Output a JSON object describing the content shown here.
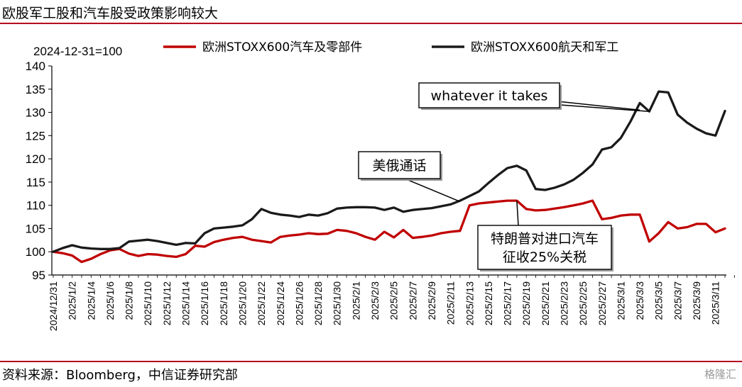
{
  "page": {
    "title": "欧股军工股和汽车股受政策影响较大",
    "source": "资料来源：Bloomberg，中信证券研究部",
    "watermark": "格隆汇"
  },
  "chart_data": {
    "type": "line",
    "ylabel": "2024-12-31=100",
    "ylim": [
      95,
      140
    ],
    "yticks": [
      95,
      100,
      105,
      110,
      115,
      120,
      125,
      130,
      135,
      140
    ],
    "x_range": [
      "2024-12-31",
      "2025-03-12"
    ],
    "xticks": [
      "2024/12/31",
      "2025/1/2",
      "2025/1/4",
      "2025/1/6",
      "2025/1/8",
      "2025/1/10",
      "2025/1/12",
      "2025/1/14",
      "2025/1/16",
      "2025/1/18",
      "2025/1/20",
      "2025/1/22",
      "2025/1/24",
      "2025/1/26",
      "2025/1/28",
      "2025/1/30",
      "2025/2/1",
      "2025/2/3",
      "2025/2/5",
      "2025/2/7",
      "2025/2/9",
      "2025/2/11",
      "2025/2/13",
      "2025/2/15",
      "2025/2/17",
      "2025/2/19",
      "2025/2/21",
      "2025/2/23",
      "2025/2/25",
      "2025/2/27",
      "2025/3/1",
      "2025/3/3",
      "2025/3/5",
      "2025/3/7",
      "2025/3/9",
      "2025/3/11"
    ],
    "grid": false,
    "legend_position": "top",
    "series": [
      {
        "name": "欧洲STOXX600汽车及零部件",
        "color": "#c00000",
        "points": [
          [
            "2024-12-31",
            100.0
          ],
          [
            "2025-01-01",
            99.7
          ],
          [
            "2025-01-02",
            99.2
          ],
          [
            "2025-01-03",
            97.8
          ],
          [
            "2025-01-04",
            98.5
          ],
          [
            "2025-01-05",
            99.5
          ],
          [
            "2025-01-06",
            100.3
          ],
          [
            "2025-01-07",
            100.6
          ],
          [
            "2025-01-08",
            99.6
          ],
          [
            "2025-01-09",
            99.1
          ],
          [
            "2025-01-10",
            99.5
          ],
          [
            "2025-01-11",
            99.4
          ],
          [
            "2025-01-12",
            99.1
          ],
          [
            "2025-01-13",
            98.9
          ],
          [
            "2025-01-14",
            99.5
          ],
          [
            "2025-01-15",
            101.3
          ],
          [
            "2025-01-16",
            101.1
          ],
          [
            "2025-01-17",
            102.1
          ],
          [
            "2025-01-18",
            102.6
          ],
          [
            "2025-01-19",
            103.0
          ],
          [
            "2025-01-20",
            103.2
          ],
          [
            "2025-01-21",
            102.6
          ],
          [
            "2025-01-22",
            102.3
          ],
          [
            "2025-01-23",
            102.0
          ],
          [
            "2025-01-24",
            103.2
          ],
          [
            "2025-01-25",
            103.5
          ],
          [
            "2025-01-26",
            103.7
          ],
          [
            "2025-01-27",
            104.0
          ],
          [
            "2025-01-28",
            103.8
          ],
          [
            "2025-01-29",
            103.9
          ],
          [
            "2025-01-30",
            104.7
          ],
          [
            "2025-01-31",
            104.5
          ],
          [
            "2025-02-01",
            104.0
          ],
          [
            "2025-02-02",
            103.2
          ],
          [
            "2025-02-03",
            102.6
          ],
          [
            "2025-02-04",
            104.3
          ],
          [
            "2025-02-05",
            103.1
          ],
          [
            "2025-02-06",
            104.7
          ],
          [
            "2025-02-07",
            103.0
          ],
          [
            "2025-02-08",
            103.2
          ],
          [
            "2025-02-09",
            103.5
          ],
          [
            "2025-02-10",
            104.0
          ],
          [
            "2025-02-11",
            104.3
          ],
          [
            "2025-02-12",
            104.5
          ],
          [
            "2025-02-13",
            110.0
          ],
          [
            "2025-02-14",
            110.4
          ],
          [
            "2025-02-15",
            110.6
          ],
          [
            "2025-02-16",
            110.8
          ],
          [
            "2025-02-17",
            111.0
          ],
          [
            "2025-02-18",
            111.0
          ],
          [
            "2025-02-19",
            109.2
          ],
          [
            "2025-02-20",
            108.9
          ],
          [
            "2025-02-21",
            109.0
          ],
          [
            "2025-02-22",
            109.3
          ],
          [
            "2025-02-23",
            109.6
          ],
          [
            "2025-02-24",
            110.0
          ],
          [
            "2025-02-25",
            110.4
          ],
          [
            "2025-02-26",
            111.0
          ],
          [
            "2025-02-27",
            107.0
          ],
          [
            "2025-02-28",
            107.3
          ],
          [
            "2025-03-01",
            107.8
          ],
          [
            "2025-03-02",
            108.0
          ],
          [
            "2025-03-03",
            108.0
          ],
          [
            "2025-03-04",
            102.2
          ],
          [
            "2025-03-05",
            104.0
          ],
          [
            "2025-03-06",
            106.4
          ],
          [
            "2025-03-07",
            105.0
          ],
          [
            "2025-03-08",
            105.3
          ],
          [
            "2025-03-09",
            106.0
          ],
          [
            "2025-03-10",
            106.0
          ],
          [
            "2025-03-11",
            104.2
          ],
          [
            "2025-03-12",
            105.0
          ]
        ]
      },
      {
        "name": "欧洲STOXX600航天和军工",
        "color": "#1a1a1a",
        "points": [
          [
            "2024-12-31",
            100.0
          ],
          [
            "2025-01-01",
            100.8
          ],
          [
            "2025-01-02",
            101.4
          ],
          [
            "2025-01-03",
            100.9
          ],
          [
            "2025-01-04",
            100.7
          ],
          [
            "2025-01-05",
            100.6
          ],
          [
            "2025-01-06",
            100.6
          ],
          [
            "2025-01-07",
            100.8
          ],
          [
            "2025-01-08",
            102.2
          ],
          [
            "2025-01-09",
            102.4
          ],
          [
            "2025-01-10",
            102.6
          ],
          [
            "2025-01-11",
            102.3
          ],
          [
            "2025-01-12",
            101.9
          ],
          [
            "2025-01-13",
            101.5
          ],
          [
            "2025-01-14",
            101.9
          ],
          [
            "2025-01-15",
            101.8
          ],
          [
            "2025-01-16",
            104.0
          ],
          [
            "2025-01-17",
            105.0
          ],
          [
            "2025-01-18",
            105.2
          ],
          [
            "2025-01-19",
            105.4
          ],
          [
            "2025-01-20",
            105.7
          ],
          [
            "2025-01-21",
            107.0
          ],
          [
            "2025-01-22",
            109.2
          ],
          [
            "2025-01-23",
            108.4
          ],
          [
            "2025-01-24",
            108.0
          ],
          [
            "2025-01-25",
            107.8
          ],
          [
            "2025-01-26",
            107.5
          ],
          [
            "2025-01-27",
            108.0
          ],
          [
            "2025-01-28",
            107.8
          ],
          [
            "2025-01-29",
            108.3
          ],
          [
            "2025-01-30",
            109.3
          ],
          [
            "2025-01-31",
            109.5
          ],
          [
            "2025-02-01",
            109.6
          ],
          [
            "2025-02-02",
            109.6
          ],
          [
            "2025-02-03",
            109.5
          ],
          [
            "2025-02-04",
            109.0
          ],
          [
            "2025-02-05",
            109.5
          ],
          [
            "2025-02-06",
            108.6
          ],
          [
            "2025-02-07",
            109.0
          ],
          [
            "2025-02-08",
            109.2
          ],
          [
            "2025-02-09",
            109.4
          ],
          [
            "2025-02-10",
            109.8
          ],
          [
            "2025-02-11",
            110.2
          ],
          [
            "2025-02-12",
            111.0
          ],
          [
            "2025-02-13",
            112.0
          ],
          [
            "2025-02-14",
            113.0
          ],
          [
            "2025-02-15",
            114.8
          ],
          [
            "2025-02-16",
            116.5
          ],
          [
            "2025-02-17",
            118.0
          ],
          [
            "2025-02-18",
            118.5
          ],
          [
            "2025-02-19",
            117.5
          ],
          [
            "2025-02-20",
            113.5
          ],
          [
            "2025-02-21",
            113.3
          ],
          [
            "2025-02-22",
            113.8
          ],
          [
            "2025-02-23",
            114.5
          ],
          [
            "2025-02-24",
            115.5
          ],
          [
            "2025-02-25",
            117.0
          ],
          [
            "2025-02-26",
            118.8
          ],
          [
            "2025-02-27",
            122.0
          ],
          [
            "2025-02-28",
            122.5
          ],
          [
            "2025-03-01",
            124.5
          ],
          [
            "2025-03-02",
            128.0
          ],
          [
            "2025-03-03",
            132.0
          ],
          [
            "2025-03-04",
            130.2
          ],
          [
            "2025-03-05",
            134.5
          ],
          [
            "2025-03-06",
            134.3
          ],
          [
            "2025-03-07",
            129.5
          ],
          [
            "2025-03-08",
            127.8
          ],
          [
            "2025-03-09",
            126.5
          ],
          [
            "2025-03-10",
            125.5
          ],
          [
            "2025-03-11",
            125.0
          ],
          [
            "2025-03-12",
            130.3
          ]
        ]
      }
    ],
    "annotations": [
      {
        "lines": [
          "whatever it takes"
        ],
        "targets": [
          [
            "2025-03-03",
            130.5
          ],
          [
            "2025-03-04",
            130.2
          ]
        ]
      },
      {
        "lines": [
          "美俄通话"
        ],
        "targets": [
          [
            "2025-02-12",
            110.8
          ]
        ]
      },
      {
        "lines": [
          "特朗普对进口汽车",
          "征收25%关税"
        ],
        "targets": [
          [
            "2025-02-18",
            111.0
          ]
        ]
      }
    ]
  }
}
